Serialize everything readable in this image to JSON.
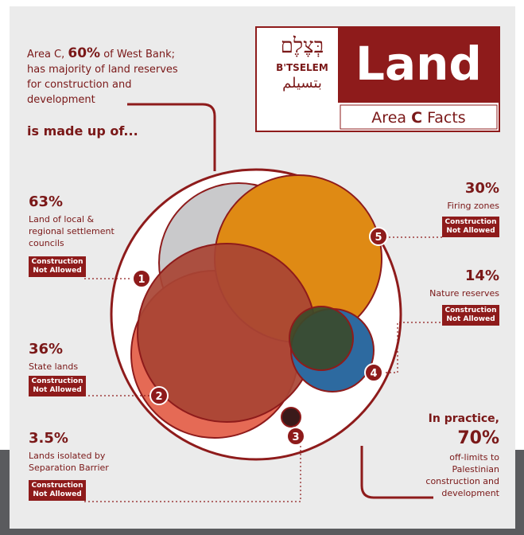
{
  "header": {
    "hebrew": "בְּצֶלֶם",
    "btselem": "B'TSELEM",
    "arabic": "بتسيلم",
    "title": "Land",
    "subtitle": {
      "area": "Area",
      "c": "C",
      "facts": "Facts"
    }
  },
  "intro": {
    "before": "Area C, ",
    "percent": "60%",
    "after": " of West Bank; has majority of land reserves for construction and development",
    "lead": "is made up of..."
  },
  "items": [
    {
      "marker": "1",
      "percent": "63%",
      "label": "Land of local & regional settlement councils",
      "badge": "Construction Not Allowed"
    },
    {
      "marker": "2",
      "percent": "36%",
      "label": "State lands",
      "badge": "Construction Not Allowed"
    },
    {
      "marker": "3",
      "percent": "3.5%",
      "label": "Lands isolated by Separation Barrier",
      "badge": "Construction Not Allowed"
    },
    {
      "marker": "4",
      "percent": "14%",
      "label": "Nature reserves",
      "badge": "Construction Not Allowed"
    },
    {
      "marker": "5",
      "percent": "30%",
      "label": "Firing zones",
      "badge": "Construction Not Allowed"
    }
  ],
  "footer": {
    "lead": "In practice,",
    "percent": "70%",
    "text": "off-limits to Palestinian construction and development"
  }
}
